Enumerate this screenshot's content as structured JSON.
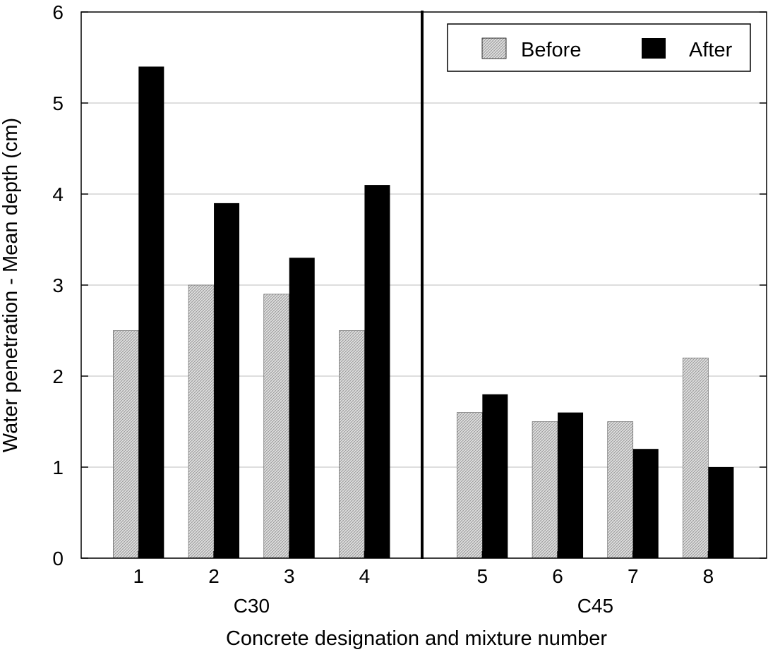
{
  "chart_data": {
    "type": "bar",
    "xlabel": "Concrete designation and mixture number",
    "ylabel": "Water penetration - Mean depth (cm)",
    "ylim": [
      0,
      6
    ],
    "yticks": [
      "0",
      "1",
      "2",
      "3",
      "4",
      "5",
      "6"
    ],
    "grid": true,
    "legend_position": "top-right",
    "groups": [
      {
        "name": "C30",
        "categories": [
          "1",
          "2",
          "3",
          "4"
        ]
      },
      {
        "name": "C45",
        "categories": [
          "5",
          "6",
          "7",
          "8"
        ]
      }
    ],
    "categories": [
      "1",
      "2",
      "3",
      "4",
      "5",
      "6",
      "7",
      "8"
    ],
    "series": [
      {
        "name": "Before",
        "pattern": "crosshatch-grey",
        "values": [
          2.5,
          3.0,
          2.9,
          2.5,
          1.6,
          1.5,
          1.5,
          2.2
        ]
      },
      {
        "name": "After",
        "color": "#000000",
        "values": [
          5.4,
          3.9,
          3.3,
          4.1,
          1.8,
          1.6,
          1.2,
          1.0
        ]
      }
    ]
  }
}
